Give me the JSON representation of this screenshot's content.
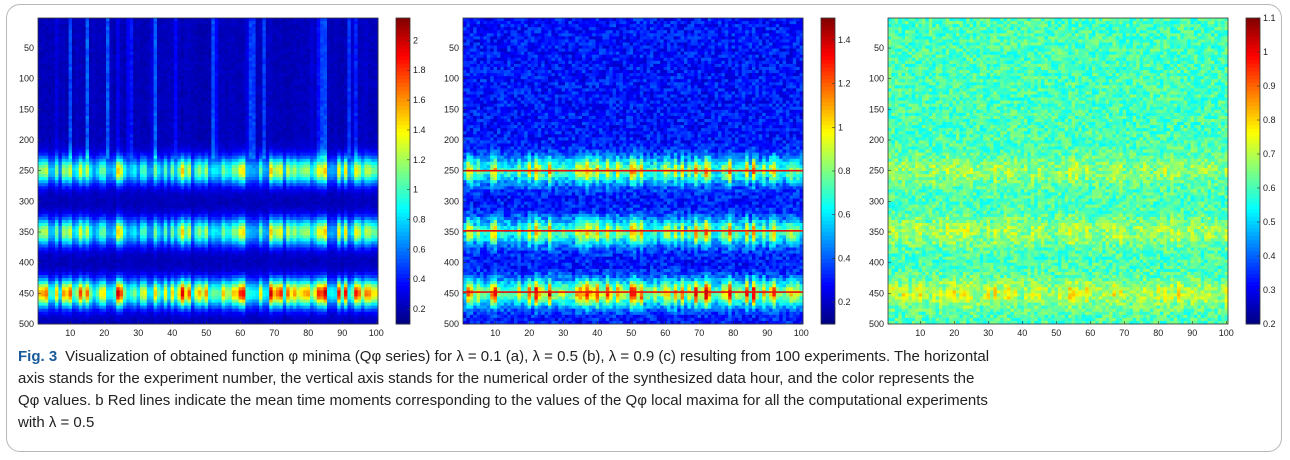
{
  "chart_data": [
    {
      "type": "heatmap",
      "panel": "a",
      "lambda": 0.1,
      "x_ticks": [
        "10",
        "20",
        "30",
        "40",
        "50",
        "60",
        "70",
        "80",
        "90",
        "100"
      ],
      "y_ticks": [
        "50",
        "100",
        "150",
        "200",
        "250",
        "300",
        "350",
        "400",
        "450",
        "500"
      ],
      "xlim": [
        1,
        100
      ],
      "ylim": [
        1,
        500
      ],
      "colorbar_ticks": [
        "0.2",
        "0.4",
        "0.6",
        "0.8",
        "1",
        "1.2",
        "1.4",
        "1.6",
        "1.8",
        "2"
      ],
      "colorbar_range": [
        0.1,
        2.15
      ],
      "colormap": "jet",
      "bands": [
        {
          "center": 250,
          "peak": 1.5
        },
        {
          "center": 350,
          "peak": 1.5
        },
        {
          "center": 450,
          "peak": 2.0
        }
      ],
      "background_level": 0.2,
      "noise": 0.03,
      "red_lines": []
    },
    {
      "type": "heatmap",
      "panel": "b",
      "lambda": 0.5,
      "x_ticks": [
        "10",
        "20",
        "30",
        "40",
        "50",
        "60",
        "70",
        "80",
        "90",
        "100"
      ],
      "y_ticks": [
        "50",
        "100",
        "150",
        "200",
        "250",
        "300",
        "350",
        "400",
        "450",
        "500"
      ],
      "xlim": [
        1,
        100
      ],
      "ylim": [
        1,
        500
      ],
      "colorbar_ticks": [
        "0.2",
        "0.4",
        "0.6",
        "0.8",
        "1",
        "1.2",
        "1.4"
      ],
      "colorbar_range": [
        0.1,
        1.5
      ],
      "colormap": "jet",
      "bands": [
        {
          "center": 250,
          "peak": 1.2
        },
        {
          "center": 350,
          "peak": 1.2
        },
        {
          "center": 450,
          "peak": 1.45
        }
      ],
      "background_level": 0.3,
      "noise": 0.1,
      "red_lines": [
        250,
        348,
        448
      ]
    },
    {
      "type": "heatmap",
      "panel": "c",
      "lambda": 0.9,
      "x_ticks": [
        "10",
        "20",
        "30",
        "40",
        "50",
        "60",
        "70",
        "80",
        "90",
        "100"
      ],
      "y_ticks": [
        "50",
        "100",
        "150",
        "200",
        "250",
        "300",
        "350",
        "400",
        "450",
        "500"
      ],
      "xlim": [
        1,
        100
      ],
      "ylim": [
        1,
        500
      ],
      "colorbar_ticks": [
        "0.2",
        "0.3",
        "0.4",
        "0.5",
        "0.6",
        "0.7",
        "0.8",
        "0.9",
        "1",
        "1.1"
      ],
      "colorbar_range": [
        0.2,
        1.1
      ],
      "colormap": "jet",
      "bands": [
        {
          "center": 250,
          "peak": 0.72
        },
        {
          "center": 350,
          "peak": 0.74
        },
        {
          "center": 450,
          "peak": 0.78
        }
      ],
      "background_level": 0.6,
      "noise": 0.07,
      "red_lines": []
    }
  ],
  "caption": {
    "label": "Fig. 3",
    "line1": "Visualization of obtained function φ minima (Qφ series) for λ = 0.1 (a), λ = 0.5 (b), λ = 0.9 (c) resulting from 100 experiments. The horizontal",
    "line2": "axis stands for the experiment number, the vertical axis stands for the numerical order of the synthesized data hour, and the color represents the",
    "line3": "Qφ values. b Red lines indicate the mean time moments corresponding to the values of the Qφ local maxima for all the computational experiments",
    "line4": "with λ = 0.5"
  }
}
